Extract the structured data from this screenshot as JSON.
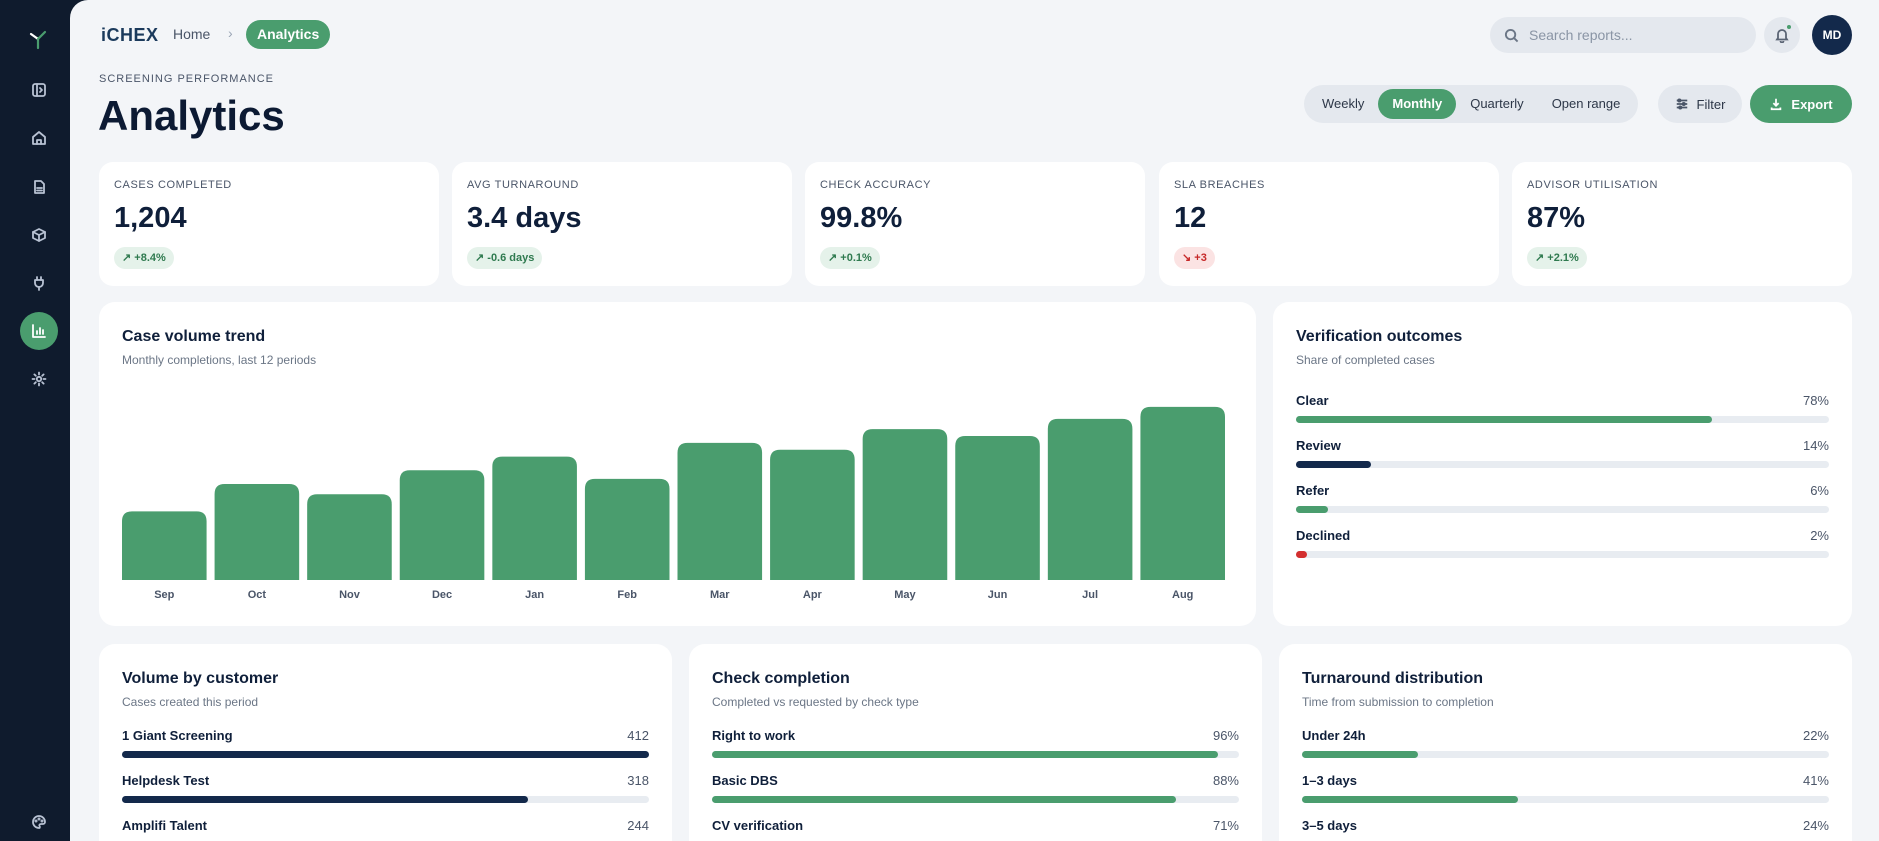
{
  "brand": "iCHEX",
  "breadcrumb": {
    "home": "Home",
    "separator": "›",
    "current": "Analytics"
  },
  "search": {
    "placeholder": "Search reports..."
  },
  "user": {
    "initials": "MD"
  },
  "page": {
    "eyebrow": "SCREENING PERFORMANCE",
    "title": "Analytics"
  },
  "periods": [
    {
      "label": "Weekly",
      "active": false
    },
    {
      "label": "Monthly",
      "active": true
    },
    {
      "label": "Quarterly",
      "active": false
    },
    {
      "label": "Open range",
      "active": false
    }
  ],
  "actions": {
    "filter": "Filter",
    "export": "Export"
  },
  "sidebar": {
    "icons": [
      "brand-leaf-icon",
      "panel-icon",
      "home-icon",
      "document-icon",
      "package-icon",
      "plug-icon",
      "analytics-icon",
      "settings-icon",
      "palette-icon"
    ],
    "active": "analytics-icon"
  },
  "kpis": [
    {
      "label": "CASES COMPLETED",
      "value": "1,204",
      "delta": "+8.4%",
      "trend": "up"
    },
    {
      "label": "AVG TURNAROUND",
      "value": "3.4 days",
      "delta": "-0.6 days",
      "trend": "up"
    },
    {
      "label": "CHECK ACCURACY",
      "value": "99.8%",
      "delta": "+0.1%",
      "trend": "up"
    },
    {
      "label": "SLA BREACHES",
      "value": "12",
      "delta": "+3",
      "trend": "down"
    },
    {
      "label": "ADVISOR UTILISATION",
      "value": "87%",
      "delta": "+2.1%",
      "trend": "up"
    }
  ],
  "trend": {
    "title": "Case volume trend",
    "subtitle": "Monthly completions, last 12 periods"
  },
  "chart_data": {
    "type": "bar",
    "categories": [
      "Sep",
      "Oct",
      "Nov",
      "Dec",
      "Jan",
      "Feb",
      "Mar",
      "Apr",
      "May",
      "Jun",
      "Jul",
      "Aug"
    ],
    "values": [
      40,
      56,
      50,
      64,
      72,
      59,
      80,
      76,
      88,
      84,
      94,
      101
    ],
    "ylim": [
      0,
      105
    ],
    "grid": false,
    "color": "#4a9d6e"
  },
  "outcomes": {
    "title": "Verification outcomes",
    "subtitle": "Share of completed cases",
    "items": [
      {
        "label": "Clear",
        "value": "78%",
        "pct": 78,
        "color": "#4a9d6e"
      },
      {
        "label": "Review",
        "value": "14%",
        "pct": 14,
        "color": "#13294b"
      },
      {
        "label": "Refer",
        "value": "6%",
        "pct": 6,
        "color": "#4a9d6e"
      },
      {
        "label": "Declined",
        "value": "2%",
        "pct": 2,
        "color": "#d32f2f"
      }
    ]
  },
  "customers": {
    "title": "Volume by customer",
    "subtitle": "Cases created this period",
    "items": [
      {
        "label": "1 Giant Screening",
        "value": "412",
        "pct": 100,
        "color": "#13294b"
      },
      {
        "label": "Helpdesk Test",
        "value": "318",
        "pct": 77,
        "color": "#13294b"
      },
      {
        "label": "Amplifi Talent",
        "value": "244",
        "pct": 59,
        "color": "#13294b"
      }
    ]
  },
  "completion": {
    "title": "Check completion",
    "subtitle": "Completed vs requested by check type",
    "items": [
      {
        "label": "Right to work",
        "value": "96%",
        "pct": 96,
        "color": "#4a9d6e"
      },
      {
        "label": "Basic DBS",
        "value": "88%",
        "pct": 88,
        "color": "#4a9d6e"
      },
      {
        "label": "CV verification",
        "value": "71%",
        "pct": 71,
        "color": "#4a9d6e"
      }
    ]
  },
  "turnaround": {
    "title": "Turnaround distribution",
    "subtitle": "Time from submission to completion",
    "items": [
      {
        "label": "Under 24h",
        "value": "22%",
        "pct": 22,
        "color": "#4a9d6e"
      },
      {
        "label": "1–3 days",
        "value": "41%",
        "pct": 41,
        "color": "#4a9d6e"
      },
      {
        "label": "3–5 days",
        "value": "24%",
        "pct": 24,
        "color": "#4a9d6e"
      }
    ]
  }
}
